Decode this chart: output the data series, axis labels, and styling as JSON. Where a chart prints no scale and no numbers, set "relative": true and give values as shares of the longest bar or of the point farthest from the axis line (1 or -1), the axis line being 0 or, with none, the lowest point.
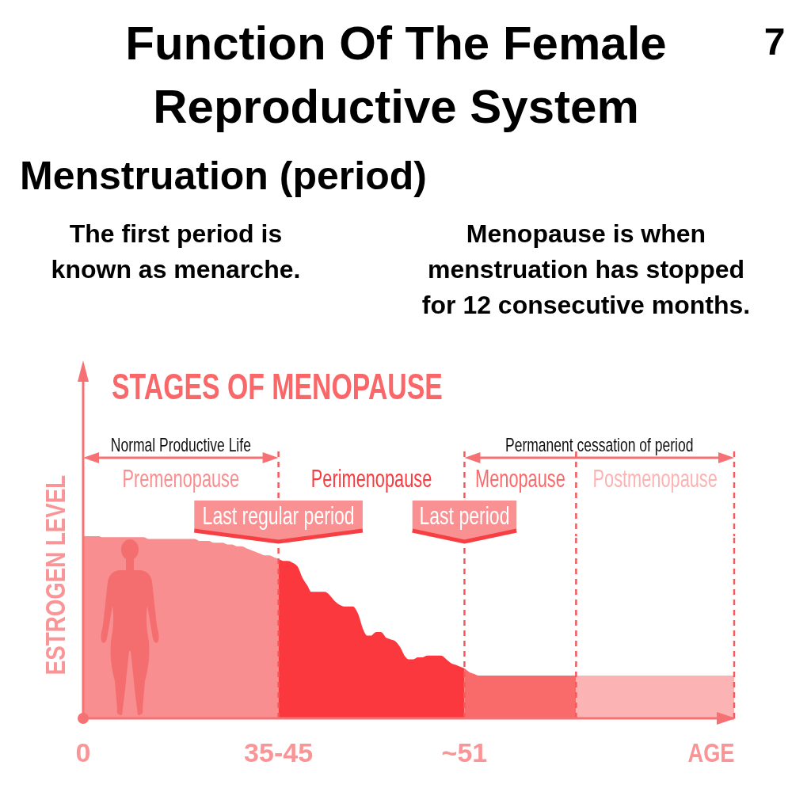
{
  "chart_data": {
    "type": "area",
    "title": "Function Of The Female Reproductive System",
    "subtitle": "Menstruation (period)",
    "xlabel": "AGE",
    "ylabel": "ESTROGEN LEVEL",
    "relative": true,
    "annotations": [
      "7",
      "The first period is known as menarche.",
      "Menopause is when menstruation has stopped for 12 consecutive months.",
      "STAGES OF MENOPAUSE",
      "Normal Productive Life",
      "Permanent cessation of period"
    ],
    "categories": [
      "0",
      null,
      null,
      null,
      null,
      null,
      null,
      null,
      null,
      null,
      null,
      null,
      null,
      null,
      null,
      null,
      null,
      null,
      null,
      null,
      null,
      null,
      null,
      null,
      null,
      null,
      null,
      null,
      null,
      null,
      null,
      null,
      null,
      null,
      null,
      null,
      null,
      null,
      null,
      null,
      null,
      null,
      "35-45",
      null,
      null,
      null,
      null,
      null,
      null,
      null,
      null,
      null,
      null,
      null,
      null,
      null,
      null,
      null,
      null,
      null,
      null,
      null,
      null,
      null,
      null,
      null,
      null,
      null,
      null,
      null,
      null,
      null,
      null,
      null,
      null,
      null,
      null,
      null,
      null,
      null,
      null,
      null,
      "~51",
      null,
      null,
      null,
      null,
      null,
      null,
      null,
      null,
      null,
      null,
      null,
      null,
      null,
      null,
      null,
      null,
      null,
      null,
      null,
      null,
      null,
      null,
      null,
      null,
      null,
      null,
      null,
      null,
      null,
      null,
      null,
      null,
      null,
      null,
      null,
      null,
      null,
      null,
      null,
      null,
      null,
      null,
      null,
      null,
      null,
      null,
      null,
      null,
      null,
      null,
      null,
      null,
      null,
      null,
      null,
      null,
      null,
      null
    ],
    "series": [
      {
        "name": "Premenopause",
        "color": "#f88e8f",
        "values": [
          1,
          1,
          1,
          1,
          0.99,
          0.99,
          0.99,
          0.99,
          0.99,
          0.99,
          0.99,
          0.99,
          0.99,
          0.99,
          0.98,
          0.98,
          0.98,
          0.98,
          0.98,
          0.98,
          0.98,
          0.98,
          0.98,
          0.98,
          0.98,
          0.97,
          0.97,
          0.97,
          0.96,
          0.96,
          0.96,
          0.95,
          0.95,
          0.94,
          0.94,
          0.93,
          0.92,
          0.91,
          0.9,
          0.89,
          0.89,
          0.88,
          0.87,
          null,
          null,
          null,
          null,
          null,
          null,
          null,
          null,
          null,
          null,
          null,
          null,
          null,
          null,
          null,
          null,
          null,
          null,
          null,
          null,
          null,
          null,
          null,
          null,
          null,
          null,
          null,
          null,
          null,
          null,
          null,
          null,
          null,
          null,
          null,
          null,
          null,
          null,
          null,
          null,
          null,
          null,
          null,
          null,
          null,
          null,
          null,
          null,
          null,
          null,
          null,
          null,
          null,
          null,
          null,
          null,
          null,
          null,
          null,
          null,
          null,
          null,
          null,
          null,
          null,
          null,
          null,
          null,
          null,
          null,
          null,
          null,
          null,
          null,
          null,
          null,
          null,
          null,
          null,
          null,
          null,
          null,
          null,
          null,
          null,
          null,
          null,
          null,
          null,
          null,
          null,
          null,
          null,
          null,
          null,
          null,
          null,
          null
        ]
      },
      {
        "name": "Perimenopause",
        "color": "#fb383d",
        "values": [
          null,
          null,
          null,
          null,
          null,
          null,
          null,
          null,
          null,
          null,
          null,
          null,
          null,
          null,
          null,
          null,
          null,
          null,
          null,
          null,
          null,
          null,
          null,
          null,
          null,
          null,
          null,
          null,
          null,
          null,
          null,
          null,
          null,
          null,
          null,
          null,
          null,
          null,
          null,
          null,
          null,
          null,
          0.87,
          0.86,
          0.86,
          0.85,
          0.83,
          0.77,
          0.73,
          0.69,
          0.69,
          0.69,
          0.69,
          0.67,
          0.64,
          0.62,
          0.61,
          0.61,
          0.61,
          0.57,
          0.49,
          0.45,
          0.45,
          0.47,
          0.47,
          0.44,
          0.43,
          0.42,
          0.39,
          0.34,
          0.32,
          0.32,
          0.33,
          0.33,
          0.34,
          0.34,
          0.34,
          0.34,
          0.32,
          0.3,
          0.29,
          0.28,
          0.27,
          null,
          null,
          null,
          null,
          null,
          null,
          null,
          null,
          null,
          null,
          null,
          null,
          null,
          null,
          null,
          null,
          null,
          null,
          null,
          null,
          null,
          null,
          null,
          null,
          null,
          null,
          null,
          null,
          null,
          null,
          null,
          null,
          null,
          null,
          null,
          null,
          null,
          null,
          null,
          null,
          null,
          null,
          null,
          null,
          null,
          null,
          null,
          null,
          null,
          null,
          null,
          null,
          null,
          null,
          null,
          null,
          null,
          null
        ]
      },
      {
        "name": "Menopause",
        "color": "#f96a6b",
        "values": [
          null,
          null,
          null,
          null,
          null,
          null,
          null,
          null,
          null,
          null,
          null,
          null,
          null,
          null,
          null,
          null,
          null,
          null,
          null,
          null,
          null,
          null,
          null,
          null,
          null,
          null,
          null,
          null,
          null,
          null,
          null,
          null,
          null,
          null,
          null,
          null,
          null,
          null,
          null,
          null,
          null,
          null,
          null,
          null,
          null,
          null,
          null,
          null,
          null,
          null,
          null,
          null,
          null,
          null,
          null,
          null,
          null,
          null,
          null,
          null,
          null,
          null,
          null,
          null,
          null,
          null,
          null,
          null,
          null,
          null,
          null,
          null,
          null,
          null,
          null,
          null,
          null,
          null,
          null,
          null,
          null,
          null,
          0.27,
          0.25,
          0.24,
          0.23,
          0.23,
          0.23,
          0.23,
          0.23,
          0.23,
          0.23,
          0.23,
          0.23,
          0.23,
          0.23,
          0.23,
          0.23,
          0.23,
          0.23,
          0.23,
          0.23,
          0.23,
          0.23,
          0.23,
          0.23,
          0.23,
          null,
          null,
          null,
          null,
          null,
          null,
          null,
          null,
          null,
          null,
          null,
          null,
          null,
          null,
          null,
          null,
          null,
          null,
          null,
          null,
          null,
          null,
          null,
          null,
          null,
          null,
          null,
          null,
          null,
          null,
          null,
          null,
          null,
          null
        ]
      },
      {
        "name": "Postmenopause",
        "color": "#fbb3b3",
        "values": [
          null,
          null,
          null,
          null,
          null,
          null,
          null,
          null,
          null,
          null,
          null,
          null,
          null,
          null,
          null,
          null,
          null,
          null,
          null,
          null,
          null,
          null,
          null,
          null,
          null,
          null,
          null,
          null,
          null,
          null,
          null,
          null,
          null,
          null,
          null,
          null,
          null,
          null,
          null,
          null,
          null,
          null,
          null,
          null,
          null,
          null,
          null,
          null,
          null,
          null,
          null,
          null,
          null,
          null,
          null,
          null,
          null,
          null,
          null,
          null,
          null,
          null,
          null,
          null,
          null,
          null,
          null,
          null,
          null,
          null,
          null,
          null,
          null,
          null,
          null,
          null,
          null,
          null,
          null,
          null,
          null,
          null,
          null,
          null,
          null,
          null,
          null,
          null,
          null,
          null,
          null,
          null,
          null,
          null,
          null,
          null,
          null,
          null,
          null,
          null,
          null,
          null,
          null,
          null,
          null,
          null,
          0.23,
          0.23,
          0.23,
          0.23,
          0.23,
          0.23,
          0.23,
          0.23,
          0.23,
          0.23,
          0.23,
          0.23,
          0.23,
          0.23,
          0.23,
          0.23,
          0.23,
          0.23,
          0.23,
          0.23,
          0.23,
          0.23,
          0.23,
          0.23,
          0.23,
          0.23,
          0.23,
          0.23,
          0.23,
          0.23,
          0.23,
          0.23,
          0.23,
          0.23,
          0.23
        ]
      }
    ],
    "ref_lines": [
      {
        "axis": "x",
        "value": "35-45",
        "label": "Last regular period",
        "color": "#f6595c",
        "line_style": "dashed"
      },
      {
        "axis": "x",
        "value": "~51",
        "label": "Last period",
        "color": "#f6595c",
        "line_style": "dashed"
      }
    ]
  }
}
